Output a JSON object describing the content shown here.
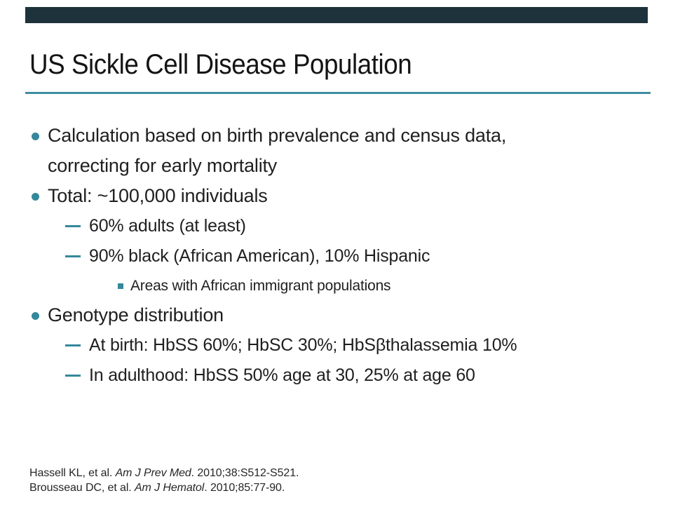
{
  "slide": {
    "title": "US Sickle Cell Disease Population",
    "colors": {
      "top_bar": "#1d323a",
      "accent_line": "#3f8ea0",
      "accent_bullet": "#35889b",
      "title_text": "#141414",
      "body_text": "#1f1f1f"
    },
    "bullets": [
      {
        "level": 1,
        "lines": [
          "Calculation based on birth prevalence and census data,",
          "correcting for early mortality"
        ]
      },
      {
        "level": 1,
        "lines": [
          "Total: ~100,000 individuals"
        ]
      },
      {
        "level": 2,
        "lines": [
          "60% adults (at least)"
        ]
      },
      {
        "level": 2,
        "lines": [
          "90% black (African American), 10% Hispanic"
        ]
      },
      {
        "level": 3,
        "lines": [
          "Areas with African immigrant populations"
        ]
      },
      {
        "level": 1,
        "lines": [
          "Genotype distribution"
        ]
      },
      {
        "level": 2,
        "lines": [
          "At birth: HbSS 60%; HbSC 30%; HbSβthalassemia 10%"
        ]
      },
      {
        "level": 2,
        "lines": [
          "In adulthood: HbSS 50% age at 30, 25% at age 60"
        ]
      }
    ],
    "citations": [
      {
        "prefix": "Hassell KL, et al. ",
        "journal": "Am J Prev Med",
        "suffix": ". 2010;38:S512-S521."
      },
      {
        "prefix": "Brousseau DC, et al. ",
        "journal": "Am J Hematol",
        "suffix": ". 2010;85:77-90."
      }
    ]
  }
}
